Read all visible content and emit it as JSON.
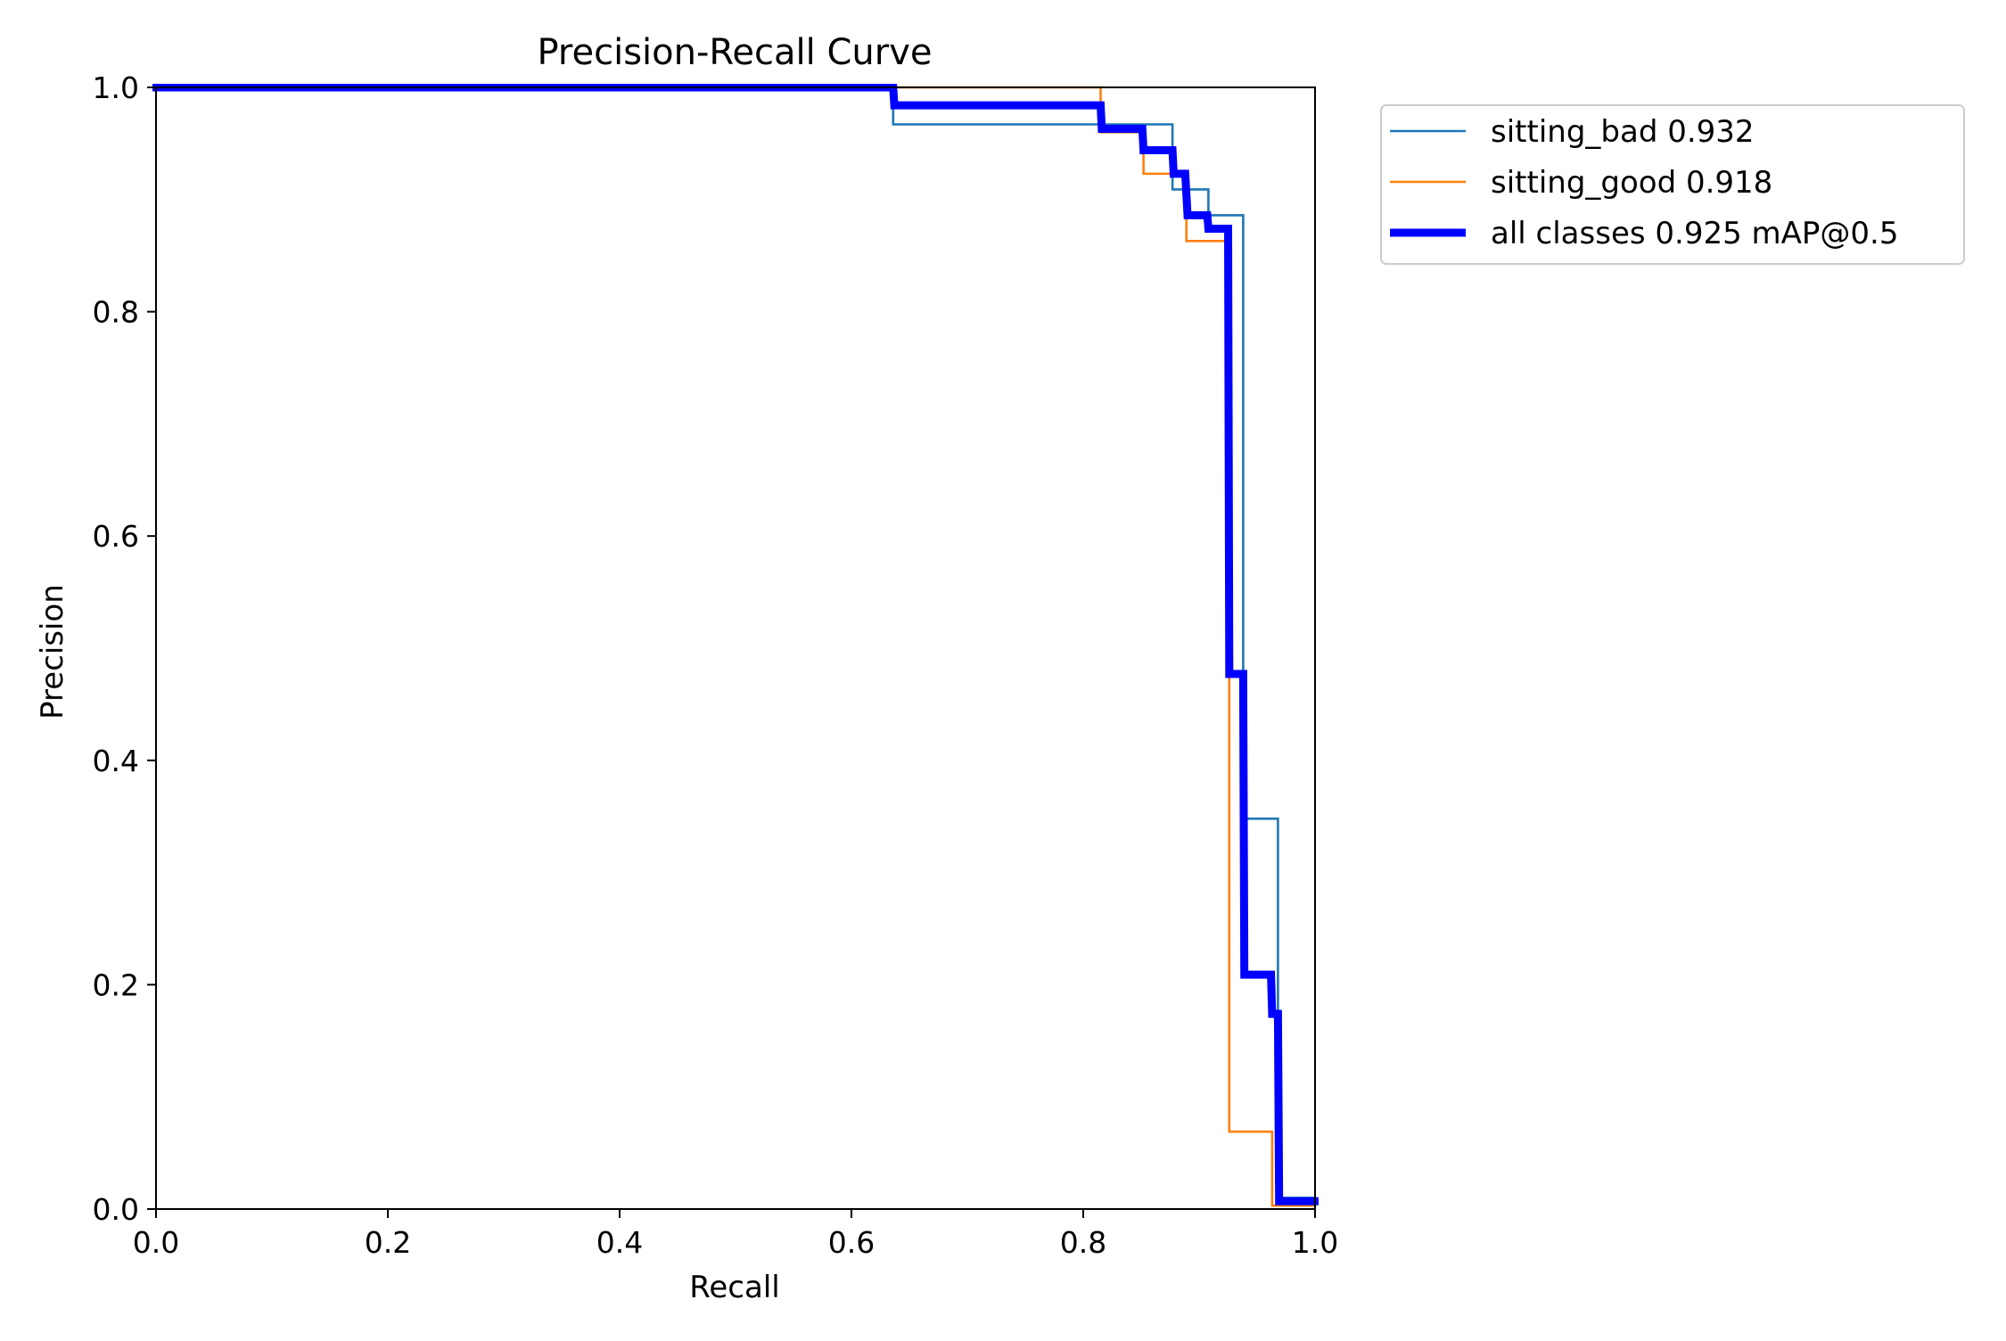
{
  "chart_data": {
    "type": "line",
    "title": "Precision-Recall Curve",
    "xlabel": "Recall",
    "ylabel": "Precision",
    "xlim": [
      0,
      1
    ],
    "ylim": [
      0,
      1
    ],
    "xticks": [
      "0.0",
      "0.2",
      "0.4",
      "0.6",
      "0.8",
      "1.0"
    ],
    "yticks": [
      "0.0",
      "0.2",
      "0.4",
      "0.6",
      "0.8",
      "1.0"
    ],
    "xtick_values": [
      0,
      0.2,
      0.4,
      0.6,
      0.8,
      1.0
    ],
    "ytick_values": [
      0,
      0.2,
      0.4,
      0.6,
      0.8,
      1.0
    ],
    "grid": false,
    "legend_position": "outside-top-right",
    "series": [
      {
        "name": "sitting_bad 0.932",
        "color": "#1f77b4",
        "style": "step-thin",
        "points": [
          [
            0.0,
            1.0
          ],
          [
            0.636,
            1.0
          ],
          [
            0.636,
            0.967
          ],
          [
            0.877,
            0.967
          ],
          [
            0.877,
            0.909
          ],
          [
            0.908,
            0.909
          ],
          [
            0.908,
            0.886
          ],
          [
            0.938,
            0.886
          ],
          [
            0.938,
            0.348
          ],
          [
            0.968,
            0.348
          ],
          [
            0.968,
            0.01
          ],
          [
            1.0,
            0.01
          ]
        ]
      },
      {
        "name": "sitting_good 0.918",
        "color": "#ff7f0e",
        "style": "step-thin",
        "points": [
          [
            0.0,
            1.0
          ],
          [
            0.815,
            1.0
          ],
          [
            0.815,
            0.96
          ],
          [
            0.852,
            0.96
          ],
          [
            0.852,
            0.923
          ],
          [
            0.889,
            0.923
          ],
          [
            0.889,
            0.863
          ],
          [
            0.926,
            0.863
          ],
          [
            0.926,
            0.069
          ],
          [
            0.963,
            0.069
          ],
          [
            0.963,
            0.003
          ],
          [
            1.0,
            0.003
          ]
        ]
      },
      {
        "name": "all classes 0.925 mAP@0.5",
        "color": "#0000ff",
        "style": "thick",
        "points": [
          [
            0.0,
            1.0
          ],
          [
            0.636,
            1.0
          ],
          [
            0.637,
            0.984
          ],
          [
            0.815,
            0.984
          ],
          [
            0.816,
            0.963
          ],
          [
            0.851,
            0.963
          ],
          [
            0.852,
            0.944
          ],
          [
            0.877,
            0.944
          ],
          [
            0.878,
            0.923
          ],
          [
            0.888,
            0.923
          ],
          [
            0.89,
            0.886
          ],
          [
            0.907,
            0.886
          ],
          [
            0.908,
            0.874
          ],
          [
            0.925,
            0.874
          ],
          [
            0.926,
            0.477
          ],
          [
            0.938,
            0.477
          ],
          [
            0.939,
            0.209
          ],
          [
            0.962,
            0.209
          ],
          [
            0.963,
            0.174
          ],
          [
            0.968,
            0.174
          ],
          [
            0.969,
            0.007
          ],
          [
            1.0,
            0.007
          ]
        ]
      }
    ]
  }
}
